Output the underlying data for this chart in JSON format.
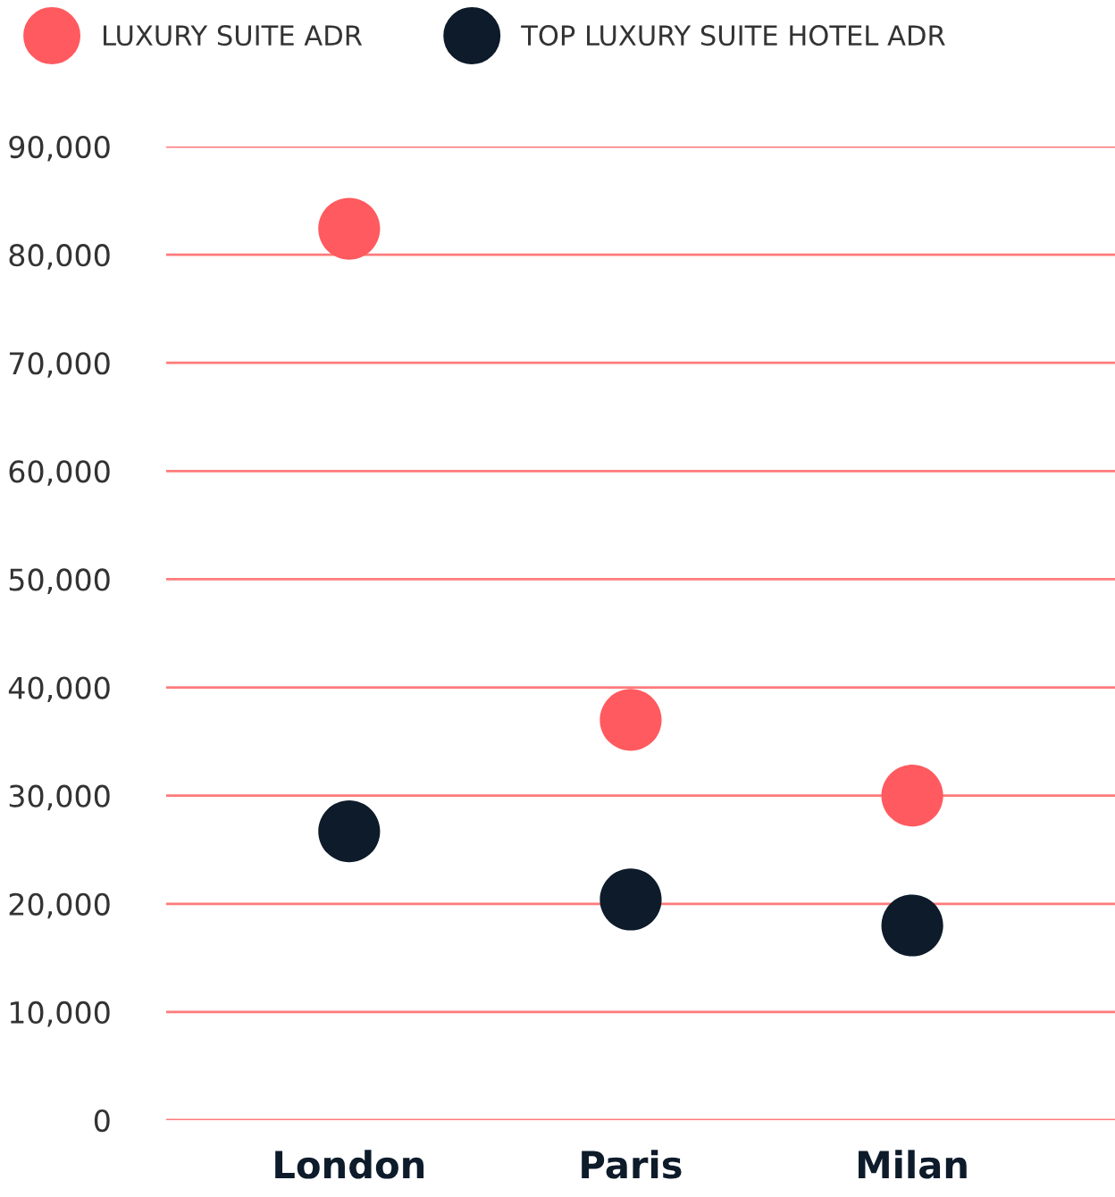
{
  "chart_data": {
    "type": "scatter",
    "categories": [
      "London",
      "Paris",
      "Milan"
    ],
    "series": [
      {
        "name": "LUXURY SUITE ADR",
        "color": "#ff5a5f",
        "values": [
          82400,
          37000,
          30000
        ]
      },
      {
        "name": "TOP LUXURY SUITE HOTEL ADR",
        "color": "#0d1b2a",
        "values": [
          26700,
          20400,
          18000
        ]
      }
    ],
    "ylim": [
      0,
      90000
    ],
    "yticks": [
      0,
      {
        "value": 10000,
        "label": "10,000"
      },
      {
        "value": 20000,
        "label": "20,000"
      },
      {
        "value": 30000,
        "label": "30,000"
      },
      {
        "value": 40000,
        "label": "40,000"
      },
      {
        "value": 50000,
        "label": "50,000"
      },
      {
        "value": 60000,
        "label": "60,000"
      },
      {
        "value": 70000,
        "label": "70,000"
      },
      {
        "value": 80000,
        "label": "80,000"
      },
      {
        "value": 90000,
        "label": "90,000"
      }
    ],
    "grid": "y",
    "legend": "top left",
    "marker": "circle"
  }
}
